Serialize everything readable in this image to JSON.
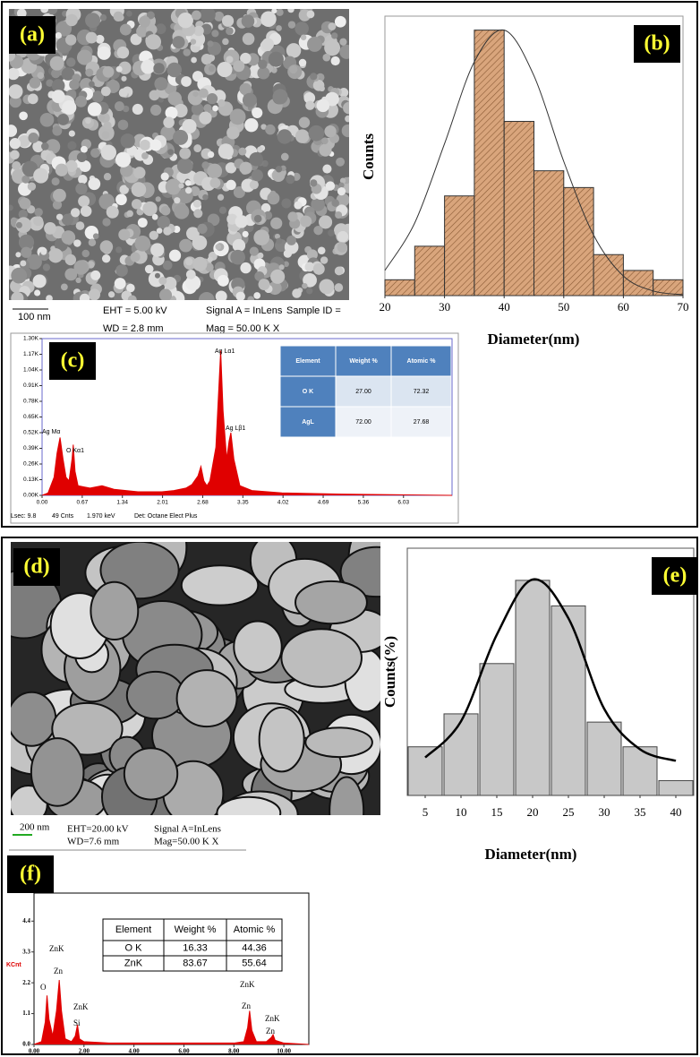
{
  "panel_labels": [
    "(a)",
    "(b)",
    "(c)",
    "(d)",
    "(e)",
    "(f)"
  ],
  "sem_a": {
    "scale_bar": "100 nm",
    "info": [
      "EHT = 5.00 kV",
      "WD = 2.8 mm",
      "Signal A = InLens",
      "Mag = 50.00 K X",
      "Sample ID ="
    ]
  },
  "edx_c_footer": [
    "Lsec: 9.8",
    "49 Cnts",
    "1.970 keV",
    "Det: Octane Elect Plus"
  ],
  "sem_d": {
    "scale_bar": "200 nm",
    "info": [
      "EHT=20.00 kV",
      "WD=7.6 mm",
      "Signal A=InLens",
      "Mag=50.00 K X"
    ]
  },
  "chart_data": [
    {
      "type": "histogram",
      "xlabel": "Diameter(nm)",
      "ylabel": "Counts",
      "bins": [
        20,
        25,
        30,
        35,
        40,
        45,
        50,
        55,
        60,
        65,
        70
      ],
      "values": [
        1.7,
        5.3,
        10.7,
        28.5,
        18.7,
        13.4,
        11.6,
        4.4,
        2.7,
        1.7
      ],
      "color": "#d9a57c",
      "hatch": true,
      "xlim": [
        20,
        70
      ],
      "ylim": [
        0,
        30
      ],
      "xticks": [
        20,
        30,
        40,
        50,
        60,
        70
      ],
      "fit": {
        "x": [
          20,
          25,
          30,
          35,
          40,
          45,
          50,
          55,
          60,
          65,
          70
        ],
        "y": [
          2.7,
          7.8,
          16.3,
          25.1,
          28.5,
          23.6,
          14.4,
          6.5,
          2.1,
          0.5,
          0.1
        ],
        "color": "#333333"
      }
    },
    {
      "type": "area",
      "x": [
        0,
        0.1,
        0.2,
        0.25,
        0.3,
        0.35,
        0.4,
        0.45,
        0.5,
        0.52,
        0.55,
        0.6,
        0.7,
        0.8,
        1.0,
        1.2,
        1.4,
        1.6,
        1.8,
        2.0,
        2.2,
        2.4,
        2.5,
        2.6,
        2.65,
        2.7,
        2.75,
        2.8,
        2.9,
        2.95,
        2.98,
        3.02,
        3.08,
        3.12,
        3.15,
        3.2,
        3.3,
        3.5,
        4.0,
        5.0,
        6.0,
        6.84
      ],
      "values": [
        0,
        20,
        150,
        350,
        480,
        300,
        150,
        120,
        300,
        420,
        200,
        80,
        70,
        60,
        80,
        50,
        40,
        30,
        30,
        30,
        40,
        60,
        90,
        160,
        240,
        120,
        80,
        120,
        400,
        900,
        1200,
        700,
        300,
        450,
        520,
        300,
        80,
        40,
        20,
        10,
        5,
        0
      ],
      "color": "#e00000",
      "xlim": [
        0,
        6.84
      ],
      "ylim": [
        0,
        1300
      ],
      "xticks": [
        {
          "value": 0,
          "label": "0.00"
        },
        0.67,
        1.34,
        2.01,
        2.68,
        3.35,
        4.02,
        4.69,
        5.36,
        6.03
      ],
      "yticks": [
        {
          "value": 0,
          "label": "0.00K"
        },
        {
          "value": 130,
          "label": "0.13K"
        },
        {
          "value": 260,
          "label": "0.26K"
        },
        {
          "value": 390,
          "label": "0.39K"
        },
        {
          "value": 520,
          "label": "0.52K"
        },
        {
          "value": 650,
          "label": "0.65K"
        },
        {
          "value": 780,
          "label": "0.78K"
        },
        {
          "value": 910,
          "label": "0.91K"
        },
        {
          "value": 1040,
          "label": "1.04K"
        },
        {
          "value": 1170,
          "label": "1.17K"
        },
        {
          "value": 1300,
          "label": "1.30K"
        }
      ],
      "annotations": [
        "Ag Mα",
        "O  Kα1",
        "Ag Lα1",
        "Ag Lβ1"
      ],
      "table": {
        "header": [
          "Element",
          "Weight %",
          "Atomic %"
        ],
        "rows": [
          [
            "O K",
            "27.00",
            "72.32"
          ],
          [
            "AgL",
            "72.00",
            "27.68"
          ]
        ]
      }
    },
    {
      "type": "bar",
      "xlabel": "Diameter(nm)",
      "ylabel": "Counts(%)",
      "x": [
        5,
        10,
        15,
        20,
        25,
        30,
        35,
        40
      ],
      "values": [
        5.9,
        9.9,
        16.0,
        26.1,
        23.0,
        8.9,
        5.9,
        1.8
      ],
      "color": "#c8c8c8",
      "xlim": [
        2.5,
        42.5
      ],
      "ylim": [
        0,
        30
      ],
      "xticks": [
        5,
        10,
        15,
        20,
        25,
        30,
        35,
        40
      ],
      "fit": {
        "x": [
          5,
          10,
          15,
          20,
          25,
          30,
          35,
          40
        ],
        "y": [
          4.6,
          9.0,
          19.5,
          26.2,
          21.5,
          10.5,
          5.6,
          4.2
        ],
        "color": "#000000"
      }
    },
    {
      "type": "area",
      "ylabel": "KCnt",
      "x": [
        0,
        0.3,
        0.45,
        0.52,
        0.6,
        0.75,
        0.9,
        1.01,
        1.1,
        1.25,
        1.5,
        1.65,
        1.74,
        1.82,
        2.0,
        3,
        4,
        5,
        6,
        7,
        8,
        8.4,
        8.55,
        8.63,
        8.72,
        8.9,
        9.3,
        9.5,
        9.57,
        9.65,
        10,
        11
      ],
      "values": [
        0,
        0.1,
        0.8,
        1.75,
        0.9,
        0.3,
        1.2,
        2.3,
        1.2,
        0.2,
        0.1,
        0.3,
        0.7,
        0.2,
        0.1,
        0.05,
        0.05,
        0.05,
        0.05,
        0.05,
        0.05,
        0.1,
        0.6,
        1.2,
        0.5,
        0.1,
        0.1,
        0.25,
        0.35,
        0.15,
        0.05,
        0
      ],
      "color": "#e00000",
      "xlim": [
        0,
        11
      ],
      "ylim": [
        0,
        5.4
      ],
      "xticks": [
        {
          "value": 0,
          "label": "0.00"
        },
        {
          "value": 2,
          "label": "2.00"
        },
        {
          "value": 4,
          "label": "4.00"
        },
        {
          "value": 6,
          "label": "6.00"
        },
        {
          "value": 8,
          "label": "8.00"
        },
        {
          "value": 10,
          "label": "10.00"
        }
      ],
      "yticks": [
        {
          "value": 0,
          "label": "0.0"
        },
        1.1,
        2.2,
        3.3,
        4.4
      ],
      "annotations": [
        "ZnK",
        "Zn",
        "O",
        "ZnK",
        "Si",
        "ZnK",
        "Zn",
        "ZnK",
        "Zn"
      ],
      "table": {
        "header": [
          "Element",
          "Weight %",
          "Atomic %"
        ],
        "rows": [
          [
            "O K",
            "16.33",
            "44.36"
          ],
          [
            "ZnK",
            "83.67",
            "55.64"
          ]
        ]
      }
    }
  ]
}
